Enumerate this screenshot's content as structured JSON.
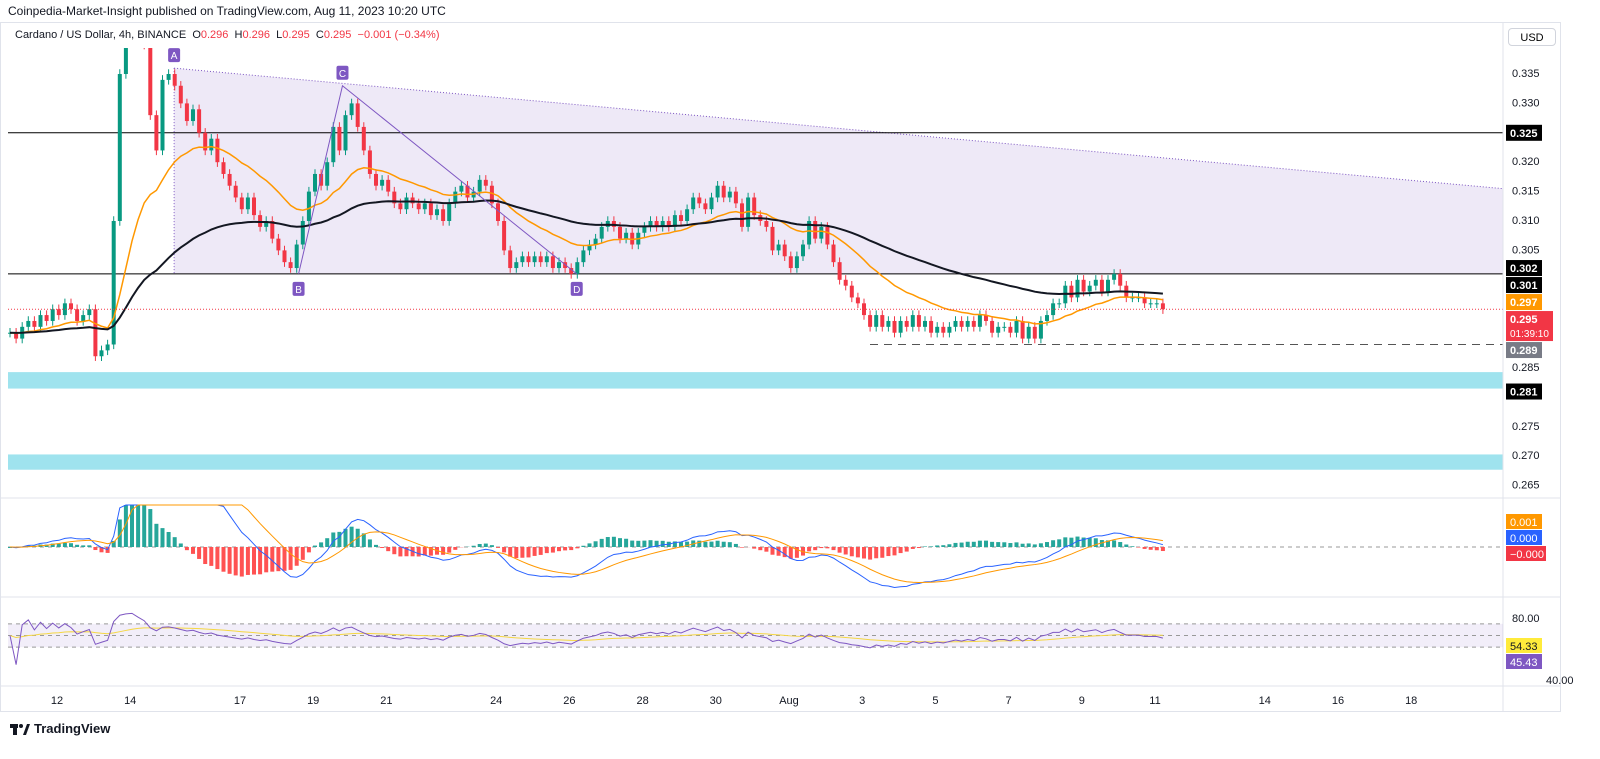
{
  "header": {
    "published": "Coinpedia-Market-Insight published on TradingView.com, Aug 11, 2023 10:20 UTC"
  },
  "legend": {
    "symbol": "Cardano / US Dollar, 4h, BINANCE",
    "o_label": "O",
    "o": "0.296",
    "h_label": "H",
    "h": "0.296",
    "l_label": "L",
    "l": "0.295",
    "c_label": "C",
    "c": "0.295",
    "change": "−0.001 (−0.34%)"
  },
  "currency_button": "USD",
  "footer": {
    "logo_text": "TradingView"
  },
  "colors": {
    "up": "#089981",
    "down": "#f23645",
    "ema": "#ff9800",
    "ma": "#131722",
    "triangle": "#7e57c2",
    "zone": "#9fe3ee"
  },
  "chart_data": [
    {
      "type": "candlestick",
      "interval": "4h",
      "start": "Jul 10 16:00",
      "ylim": [
        0.262,
        0.339
      ],
      "closes": [
        0.291,
        0.29,
        0.292,
        0.293,
        0.292,
        0.294,
        0.293,
        0.295,
        0.294,
        0.296,
        0.295,
        0.293,
        0.294,
        0.295,
        0.287,
        0.288,
        0.289,
        0.31,
        0.335,
        0.345,
        0.35,
        0.345,
        0.34,
        0.328,
        0.322,
        0.334,
        0.335,
        0.333,
        0.33,
        0.327,
        0.329,
        0.325,
        0.322,
        0.324,
        0.32,
        0.318,
        0.316,
        0.314,
        0.312,
        0.314,
        0.311,
        0.309,
        0.31,
        0.307,
        0.305,
        0.303,
        0.302,
        0.306,
        0.31,
        0.315,
        0.318,
        0.316,
        0.32,
        0.326,
        0.322,
        0.328,
        0.33,
        0.326,
        0.322,
        0.318,
        0.316,
        0.317,
        0.315,
        0.313,
        0.312,
        0.314,
        0.313,
        0.312,
        0.313,
        0.311,
        0.312,
        0.31,
        0.313,
        0.315,
        0.316,
        0.314,
        0.315,
        0.317,
        0.316,
        0.313,
        0.31,
        0.305,
        0.302,
        0.303,
        0.304,
        0.303,
        0.304,
        0.303,
        0.304,
        0.302,
        0.303,
        0.302,
        0.301,
        0.303,
        0.305,
        0.306,
        0.307,
        0.309,
        0.31,
        0.309,
        0.307,
        0.308,
        0.306,
        0.308,
        0.309,
        0.31,
        0.309,
        0.31,
        0.309,
        0.311,
        0.31,
        0.312,
        0.314,
        0.313,
        0.312,
        0.314,
        0.316,
        0.314,
        0.315,
        0.313,
        0.309,
        0.314,
        0.311,
        0.31,
        0.309,
        0.305,
        0.306,
        0.304,
        0.302,
        0.304,
        0.306,
        0.31,
        0.307,
        0.309,
        0.306,
        0.303,
        0.3,
        0.299,
        0.297,
        0.296,
        0.294,
        0.292,
        0.294,
        0.292,
        0.293,
        0.291,
        0.293,
        0.292,
        0.294,
        0.292,
        0.293,
        0.291,
        0.292,
        0.291,
        0.292,
        0.293,
        0.292,
        0.293,
        0.292,
        0.294,
        0.293,
        0.291,
        0.292,
        0.292,
        0.291,
        0.293,
        0.29,
        0.292,
        0.29,
        0.293,
        0.294,
        0.296,
        0.296,
        0.299,
        0.297,
        0.3,
        0.298,
        0.299,
        0.3,
        0.298,
        0.3,
        0.301,
        0.299,
        0.297,
        0.297,
        0.297,
        0.296,
        0.296,
        0.296,
        0.295
      ],
      "price_ticks": [
        "0.335",
        "0.330",
        "0.320",
        "0.315",
        "0.310",
        "0.305",
        "0.285",
        "0.275",
        "0.270",
        "0.265"
      ],
      "x_ticks": [
        {
          "label": "12",
          "day": 12
        },
        {
          "label": "14",
          "day": 14
        },
        {
          "label": "17",
          "day": 17
        },
        {
          "label": "19",
          "day": 19
        },
        {
          "label": "21",
          "day": 21
        },
        {
          "label": "24",
          "day": 24
        },
        {
          "label": "26",
          "day": 26
        },
        {
          "label": "28",
          "day": 28
        },
        {
          "label": "30",
          "day": 30
        },
        {
          "label": "Aug",
          "day": 32
        },
        {
          "label": "3",
          "day": 34
        },
        {
          "label": "5",
          "day": 36
        },
        {
          "label": "7",
          "day": 38
        },
        {
          "label": "9",
          "day": 40
        },
        {
          "label": "11",
          "day": 42
        },
        {
          "label": "14",
          "day": 45
        },
        {
          "label": "16",
          "day": 47
        },
        {
          "label": "18",
          "day": 49
        }
      ],
      "levels": [
        {
          "price": 0.325,
          "label": "0.325",
          "style": "solid"
        },
        {
          "price": 0.301,
          "label": "0.301",
          "style": "solid"
        },
        {
          "price": 0.289,
          "label": "0.289",
          "style": "dashed"
        }
      ],
      "zones": [
        [
          0.2815,
          0.2843
        ],
        [
          0.2677,
          0.2703
        ]
      ],
      "price_labels": [
        {
          "text": "0.302",
          "price": 0.302,
          "bg": "#000000"
        },
        {
          "text": "0.297",
          "price": 0.297,
          "bg": "#ff9800"
        },
        {
          "text": "0.295",
          "price": 0.295,
          "bg": "#f23645",
          "sub": "01:39:10"
        },
        {
          "text": "0.289",
          "price": 0.289,
          "bg": "#787b86"
        },
        {
          "text": "0.281",
          "price": 0.281,
          "bg": "#000000"
        }
      ],
      "pattern": {
        "points": [
          {
            "label": "A",
            "day": 15.2,
            "price": 0.336
          },
          {
            "label": "B",
            "day": 18.6,
            "price": 0.301
          },
          {
            "label": "C",
            "day": 19.8,
            "price": 0.333
          },
          {
            "label": "D",
            "day": 26.2,
            "price": 0.301
          }
        ],
        "triangle_end_price": 0.3155
      }
    },
    {
      "type": "macd",
      "labels": [
        "0.001",
        "0.000",
        "−0.000"
      ],
      "label_colors": [
        "#ff9800",
        "#2962ff",
        "#f23645"
      ]
    },
    {
      "type": "rsi",
      "ticks": [
        "80.00",
        "40.00"
      ],
      "labels": [
        "54.33",
        "45.43"
      ],
      "label_colors": [
        "#ffeb3b",
        "#7e57c2"
      ]
    }
  ]
}
